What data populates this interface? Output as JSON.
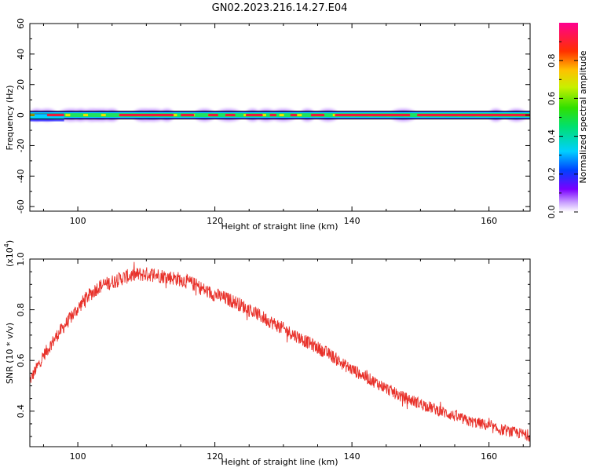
{
  "title": "GN02.2023.216.14.27.E04",
  "chart_data": [
    {
      "id": "spectrogram",
      "type": "heatmap",
      "xlabel": "Height of straight line (km)",
      "ylabel": "Frequency (Hz)",
      "xlim": [
        93,
        166
      ],
      "ylim": [
        -63,
        60
      ],
      "x_ticks": [
        100,
        120,
        140,
        160
      ],
      "y_ticks": [
        60,
        40,
        20,
        0,
        -20,
        -40,
        -60
      ],
      "colorbar": {
        "label": "Normalized spectral amplitude",
        "ticks": [
          "0.0",
          "0.2",
          "0.4",
          "0.6",
          "0.8"
        ],
        "range": [
          0,
          1
        ]
      },
      "baseline_hz": 0,
      "bright_segments_km": [
        [
          95.5,
          98
        ],
        [
          106,
          114
        ],
        [
          115,
          117
        ],
        [
          119,
          120.5
        ],
        [
          121.5,
          123
        ],
        [
          124.5,
          127
        ],
        [
          128,
          129
        ],
        [
          131,
          132
        ],
        [
          134,
          136
        ],
        [
          137.5,
          148.5
        ],
        [
          149.5,
          166
        ]
      ],
      "blob_centers_km": [
        94,
        95.5,
        99,
        100.5,
        102,
        103.5,
        105,
        109.5,
        111,
        113,
        118.5,
        122,
        125.5,
        127.5,
        130,
        133.5,
        136.5,
        147.5,
        161,
        164
      ],
      "grid": false
    },
    {
      "id": "snr",
      "type": "line",
      "xlabel": "Height of straight line (km)",
      "ylabel": "SNR (10 * v/v)",
      "multiplier_label": "(x10",
      "multiplier_exp": "4",
      "multiplier_close": ")",
      "xlim": [
        93,
        166
      ],
      "ylim": [
        0.26,
        1.0
      ],
      "x_ticks": [
        100,
        120,
        140,
        160
      ],
      "y_ticks": [
        "1.0",
        "0.8",
        "0.6",
        "0.4"
      ],
      "y_tick_values": [
        1.0,
        0.8,
        0.6,
        0.4
      ],
      "color": "#e8312a",
      "x": [
        93,
        95,
        97,
        99,
        101,
        103,
        105,
        107,
        109,
        111,
        113,
        115,
        117,
        119,
        121,
        123,
        125,
        127,
        129,
        131,
        133,
        135,
        137,
        139,
        141,
        143,
        145,
        147,
        149,
        151,
        153,
        155,
        157,
        159,
        161,
        163,
        165,
        166
      ],
      "y": [
        0.52,
        0.62,
        0.7,
        0.77,
        0.84,
        0.89,
        0.91,
        0.93,
        0.94,
        0.94,
        0.93,
        0.92,
        0.9,
        0.87,
        0.85,
        0.83,
        0.8,
        0.77,
        0.74,
        0.71,
        0.68,
        0.65,
        0.62,
        0.58,
        0.55,
        0.52,
        0.49,
        0.46,
        0.44,
        0.42,
        0.4,
        0.38,
        0.36,
        0.35,
        0.33,
        0.32,
        0.31,
        0.3
      ],
      "grid": false
    }
  ]
}
